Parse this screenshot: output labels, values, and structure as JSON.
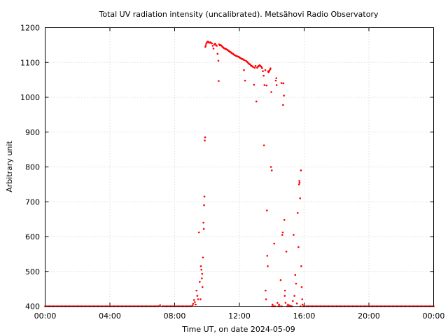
{
  "chart_data": {
    "type": "scatter",
    "title": "Total UV radiation intensity (uncalibrated). Metsähovi Radio Observatory",
    "xlabel": "Time UT, on date 2024-05-09",
    "ylabel": "Arbitrary unit",
    "xlim": [
      0,
      24
    ],
    "ylim": [
      400,
      1200
    ],
    "xticks": [
      {
        "value": 0,
        "label": "00:00"
      },
      {
        "value": 4,
        "label": "04:00"
      },
      {
        "value": 8,
        "label": "08:00"
      },
      {
        "value": 12,
        "label": "12:00"
      },
      {
        "value": 16,
        "label": "16:00"
      },
      {
        "value": 20,
        "label": "20:00"
      },
      {
        "value": 24,
        "label": "00:00"
      }
    ],
    "yticks": [
      {
        "value": 400,
        "label": "400"
      },
      {
        "value": 500,
        "label": "500"
      },
      {
        "value": 600,
        "label": "600"
      },
      {
        "value": 700,
        "label": "700"
      },
      {
        "value": 800,
        "label": "800"
      },
      {
        "value": 900,
        "label": "900"
      },
      {
        "value": 1000,
        "label": "1000"
      },
      {
        "value": 1100,
        "label": "1100"
      },
      {
        "value": 1200,
        "label": "1200"
      }
    ],
    "grid": true,
    "series_color": "#ff0000",
    "points": [
      [
        0.0,
        400
      ],
      [
        0.25,
        400
      ],
      [
        0.5,
        400
      ],
      [
        0.75,
        400
      ],
      [
        1.0,
        400
      ],
      [
        1.25,
        400
      ],
      [
        1.5,
        400
      ],
      [
        1.75,
        400
      ],
      [
        2.0,
        400
      ],
      [
        2.25,
        400
      ],
      [
        2.5,
        400
      ],
      [
        2.75,
        400
      ],
      [
        3.0,
        400
      ],
      [
        3.25,
        400
      ],
      [
        3.5,
        400
      ],
      [
        3.75,
        400
      ],
      [
        4.0,
        400
      ],
      [
        4.25,
        400
      ],
      [
        4.5,
        400
      ],
      [
        4.75,
        400
      ],
      [
        5.0,
        400
      ],
      [
        5.25,
        400
      ],
      [
        5.5,
        400
      ],
      [
        5.75,
        400
      ],
      [
        6.0,
        400
      ],
      [
        6.25,
        400
      ],
      [
        6.5,
        400
      ],
      [
        6.75,
        400
      ],
      [
        7.0,
        400
      ],
      [
        7.1,
        403
      ],
      [
        7.25,
        400
      ],
      [
        7.5,
        400
      ],
      [
        7.75,
        400
      ],
      [
        8.0,
        400
      ],
      [
        8.25,
        400
      ],
      [
        8.5,
        400
      ],
      [
        8.75,
        400
      ],
      [
        9.0,
        400
      ],
      [
        9.1,
        402
      ],
      [
        9.15,
        407
      ],
      [
        9.2,
        418
      ],
      [
        9.25,
        412
      ],
      [
        9.3,
        405
      ],
      [
        9.35,
        445
      ],
      [
        9.4,
        430
      ],
      [
        9.45,
        420
      ],
      [
        9.5,
        612
      ],
      [
        9.55,
        470
      ],
      [
        9.6,
        420
      ],
      [
        9.62,
        515
      ],
      [
        9.65,
        505
      ],
      [
        9.68,
        480
      ],
      [
        9.7,
        493
      ],
      [
        9.72,
        455
      ],
      [
        9.75,
        540
      ],
      [
        9.78,
        640
      ],
      [
        9.8,
        622
      ],
      [
        9.82,
        690
      ],
      [
        9.84,
        715
      ],
      [
        9.86,
        876
      ],
      [
        9.88,
        885
      ],
      [
        9.9,
        1145
      ],
      [
        9.93,
        1150
      ],
      [
        9.96,
        1155
      ],
      [
        10.0,
        1158
      ],
      [
        10.05,
        1160
      ],
      [
        10.1,
        1158
      ],
      [
        10.15,
        1157
      ],
      [
        10.2,
        1158
      ],
      [
        10.25,
        1156
      ],
      [
        10.3,
        1155
      ],
      [
        10.35,
        1148
      ],
      [
        10.4,
        1140
      ],
      [
        10.45,
        1152
      ],
      [
        10.5,
        1154
      ],
      [
        10.55,
        1150
      ],
      [
        10.6,
        1148
      ],
      [
        10.65,
        1125
      ],
      [
        10.7,
        1105
      ],
      [
        10.72,
        1047
      ],
      [
        10.75,
        1152
      ],
      [
        10.8,
        1149
      ],
      [
        10.85,
        1150
      ],
      [
        10.9,
        1148
      ],
      [
        10.95,
        1145
      ],
      [
        11.0,
        1143
      ],
      [
        11.05,
        1141
      ],
      [
        11.1,
        1140
      ],
      [
        11.15,
        1139
      ],
      [
        11.2,
        1138
      ],
      [
        11.25,
        1136
      ],
      [
        11.3,
        1135
      ],
      [
        11.35,
        1133
      ],
      [
        11.4,
        1131
      ],
      [
        11.45,
        1130
      ],
      [
        11.5,
        1128
      ],
      [
        11.55,
        1126
      ],
      [
        11.6,
        1125
      ],
      [
        11.65,
        1123
      ],
      [
        11.7,
        1121
      ],
      [
        11.75,
        1120
      ],
      [
        11.8,
        1119
      ],
      [
        11.85,
        1118
      ],
      [
        11.9,
        1117
      ],
      [
        11.95,
        1116
      ],
      [
        12.0,
        1115
      ],
      [
        12.05,
        1113
      ],
      [
        12.1,
        1112
      ],
      [
        12.15,
        1110
      ],
      [
        12.2,
        1110
      ],
      [
        12.25,
        1108
      ],
      [
        12.28,
        1078
      ],
      [
        12.3,
        1107
      ],
      [
        12.35,
        1048
      ],
      [
        12.4,
        1105
      ],
      [
        12.45,
        1103
      ],
      [
        12.5,
        1101
      ],
      [
        12.55,
        1098
      ],
      [
        12.6,
        1096
      ],
      [
        12.65,
        1095
      ],
      [
        12.7,
        1092
      ],
      [
        12.75,
        1090
      ],
      [
        12.8,
        1089
      ],
      [
        12.85,
        1087
      ],
      [
        12.9,
        1036
      ],
      [
        12.95,
        1085
      ],
      [
        13.0,
        1090
      ],
      [
        13.05,
        988
      ],
      [
        13.1,
        1085
      ],
      [
        13.15,
        1088
      ],
      [
        13.2,
        1090
      ],
      [
        13.25,
        1092
      ],
      [
        13.3,
        1090
      ],
      [
        13.35,
        1088
      ],
      [
        13.4,
        1084
      ],
      [
        13.45,
        1075
      ],
      [
        13.5,
        1062
      ],
      [
        13.52,
        862
      ],
      [
        13.55,
        1035
      ],
      [
        13.6,
        1078
      ],
      [
        13.62,
        445
      ],
      [
        13.65,
        420
      ],
      [
        13.68,
        1034
      ],
      [
        13.7,
        675
      ],
      [
        13.72,
        545
      ],
      [
        13.75,
        515
      ],
      [
        13.78,
        1075
      ],
      [
        13.8,
        1072
      ],
      [
        13.85,
        1076
      ],
      [
        13.9,
        1080
      ],
      [
        13.92,
        1083
      ],
      [
        13.95,
        800
      ],
      [
        13.97,
        1015
      ],
      [
        14.0,
        790
      ],
      [
        14.02,
        400
      ],
      [
        14.05,
        405
      ],
      [
        14.1,
        400
      ],
      [
        14.15,
        580
      ],
      [
        14.2,
        400
      ],
      [
        14.25,
        1048
      ],
      [
        14.28,
        1055
      ],
      [
        14.3,
        1035
      ],
      [
        14.35,
        410
      ],
      [
        14.4,
        400
      ],
      [
        14.45,
        405
      ],
      [
        14.5,
        400
      ],
      [
        14.55,
        475
      ],
      [
        14.6,
        1041
      ],
      [
        14.62,
        400
      ],
      [
        14.65,
        605
      ],
      [
        14.68,
        612
      ],
      [
        14.7,
        978
      ],
      [
        14.72,
        1040
      ],
      [
        14.75,
        1005
      ],
      [
        14.78,
        648
      ],
      [
        14.8,
        430
      ],
      [
        14.82,
        445
      ],
      [
        14.85,
        410
      ],
      [
        14.9,
        557
      ],
      [
        14.95,
        400
      ],
      [
        15.0,
        405
      ],
      [
        15.05,
        400
      ],
      [
        15.1,
        402
      ],
      [
        15.15,
        400
      ],
      [
        15.2,
        400
      ],
      [
        15.25,
        400
      ],
      [
        15.3,
        415
      ],
      [
        15.35,
        605
      ],
      [
        15.4,
        430
      ],
      [
        15.45,
        490
      ],
      [
        15.5,
        465
      ],
      [
        15.55,
        408
      ],
      [
        15.6,
        668
      ],
      [
        15.65,
        570
      ],
      [
        15.68,
        750
      ],
      [
        15.7,
        760
      ],
      [
        15.72,
        755
      ],
      [
        15.75,
        710
      ],
      [
        15.78,
        400
      ],
      [
        15.8,
        790
      ],
      [
        15.82,
        515
      ],
      [
        15.85,
        455
      ],
      [
        15.88,
        420
      ],
      [
        15.9,
        405
      ],
      [
        15.95,
        400
      ],
      [
        16.0,
        400
      ],
      [
        16.25,
        400
      ],
      [
        16.5,
        400
      ],
      [
        16.75,
        400
      ],
      [
        17.0,
        400
      ],
      [
        17.25,
        400
      ],
      [
        17.5,
        400
      ],
      [
        17.75,
        400
      ],
      [
        18.0,
        400
      ],
      [
        18.25,
        400
      ],
      [
        18.5,
        400
      ],
      [
        18.75,
        400
      ],
      [
        19.0,
        400
      ],
      [
        19.25,
        400
      ],
      [
        19.5,
        400
      ],
      [
        19.75,
        400
      ],
      [
        20.0,
        400
      ],
      [
        20.25,
        400
      ],
      [
        20.5,
        400
      ],
      [
        20.75,
        400
      ],
      [
        21.0,
        400
      ],
      [
        21.25,
        400
      ],
      [
        21.5,
        400
      ],
      [
        21.75,
        400
      ],
      [
        22.0,
        400
      ],
      [
        22.25,
        400
      ],
      [
        22.5,
        400
      ],
      [
        22.75,
        400
      ],
      [
        23.0,
        400
      ],
      [
        23.25,
        400
      ],
      [
        23.5,
        400
      ],
      [
        23.75,
        400
      ],
      [
        24.0,
        400
      ]
    ]
  }
}
